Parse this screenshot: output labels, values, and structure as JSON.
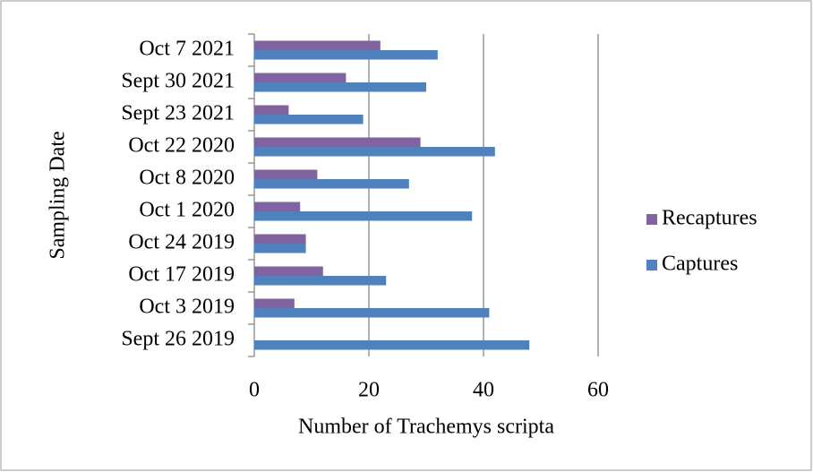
{
  "chart_data": {
    "type": "hbar",
    "xlabel": "Number of Trachemys scripta",
    "ylabel": "Sampling Date",
    "categories": [
      "Sept 26 2019",
      "Oct 3 2019",
      "Oct 17 2019",
      "Oct 24 2019",
      "Oct 1 2020",
      "Oct 8 2020",
      "Oct 22 2020",
      "Sept 23 2021",
      "Sept 30 2021",
      "Oct 7 2021"
    ],
    "series": [
      {
        "name": "Captures",
        "color": "#4f81bd",
        "values": [
          48,
          41,
          23,
          9,
          38,
          27,
          42,
          19,
          30,
          32
        ]
      },
      {
        "name": "Recaptures",
        "color": "#8064a2",
        "values": [
          0,
          7,
          12,
          9,
          8,
          11,
          29,
          6,
          16,
          22
        ]
      }
    ],
    "xlim": [
      0,
      60
    ],
    "xticks": [
      0,
      20,
      40,
      60
    ],
    "grid": true,
    "legend": "right"
  }
}
